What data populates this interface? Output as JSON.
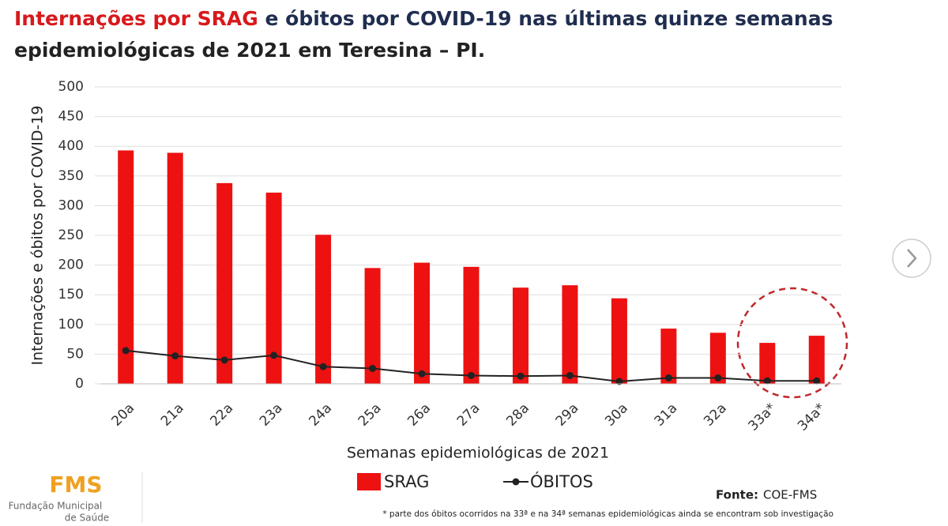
{
  "chart_data": {
    "type": "bar",
    "title_parts": [
      "Internações por SRAG",
      "e óbitos por COVID-19 nas últimas quinze semanas",
      "epidemiológicas de 2021 em Teresina – PI."
    ],
    "title_colors": [
      "#d7191c",
      "#1f2d4f",
      "#1f2d4f"
    ],
    "x_label": "Semanas epidemiológicas de 2021",
    "y_label": "Internações e óbitos por COVID-19",
    "categories": [
      "20a",
      "21a",
      "22a",
      "23a",
      "24a",
      "25a",
      "26a",
      "27a",
      "28a",
      "29a",
      "30a",
      "31a",
      "32a",
      "33a*",
      "34a*"
    ],
    "series": [
      {
        "name": "SRAG",
        "color": "#ee1111",
        "values": [
          393,
          389,
          338,
          322,
          251,
          195,
          204,
          197,
          162,
          166,
          144,
          93,
          86,
          69,
          81
        ]
      },
      {
        "name": "ÓBITOS",
        "color": "#222222",
        "type": "line",
        "values": [
          56,
          47,
          40,
          48,
          29,
          26,
          17,
          14,
          13,
          14,
          4,
          10,
          10,
          5,
          5
        ]
      }
    ],
    "ylim": [
      0,
      500
    ],
    "yticks": [
      0,
      50,
      100,
      150,
      200,
      250,
      300,
      350,
      400,
      450,
      500
    ],
    "grid": true,
    "source_label": "Fonte:",
    "source": "COE-FMS",
    "footnote": "* parte dos óbitos ocorridos na 33ª e na 34ª semanas epidemiológicas ainda se encontram sob investigação",
    "logo": {
      "name": "FMS",
      "lines": [
        "Fundação Municipal",
        "de Saúde"
      ]
    }
  }
}
